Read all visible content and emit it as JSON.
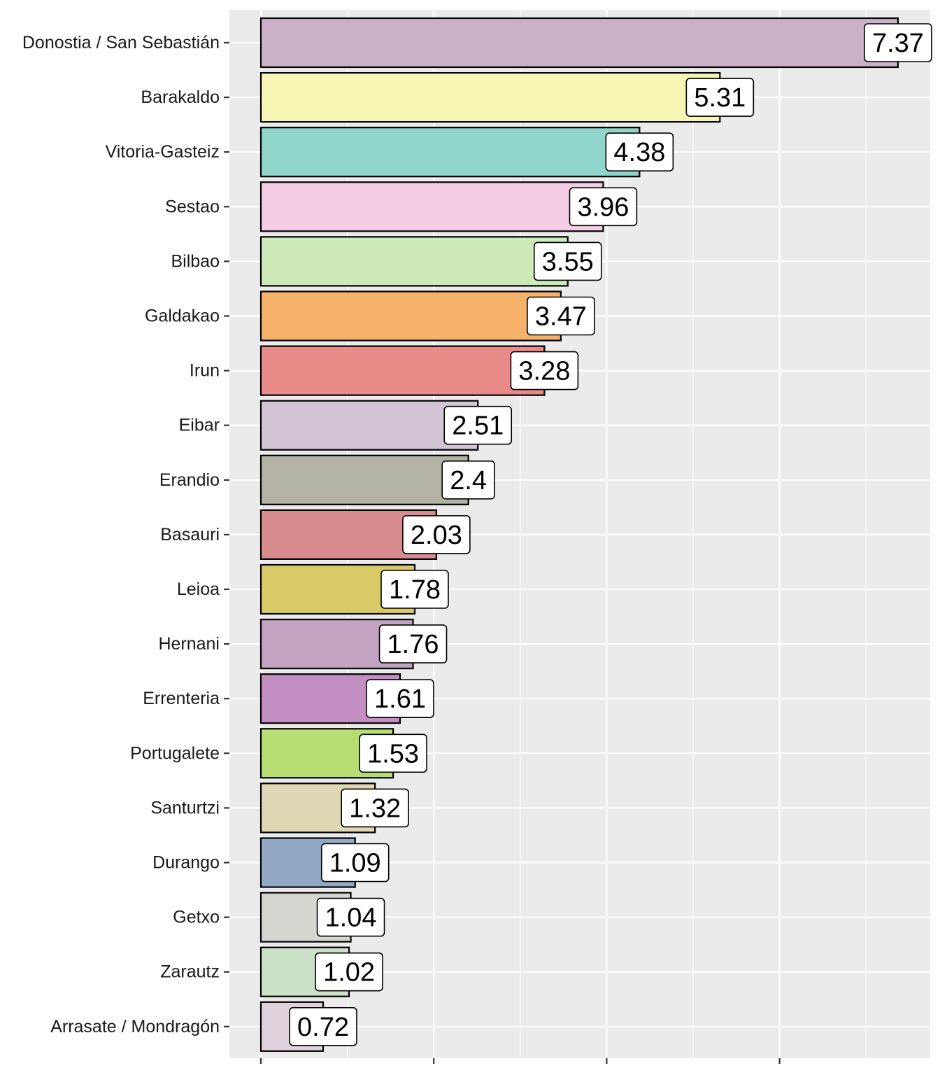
{
  "chart_data": {
    "type": "bar",
    "orientation": "horizontal",
    "title": "",
    "xlabel": "",
    "ylabel": "",
    "xlim": [
      0,
      7.75
    ],
    "x_major_breaks": [
      0,
      2,
      4,
      6
    ],
    "x_minor_breaks": [
      1,
      3,
      5,
      7
    ],
    "tick_labels_shown": false,
    "grid": true,
    "legend": "none",
    "categories": [
      "Donostia / San Sebastián",
      "Barakaldo",
      "Vitoria-Gasteiz",
      "Sestao",
      "Bilbao",
      "Galdakao",
      "Irun",
      "Eibar",
      "Erandio",
      "Basauri",
      "Leioa",
      "Hernani",
      "Errenteria",
      "Portugalete",
      "Santurtzi",
      "Durango",
      "Getxo",
      "Zarautz",
      "Arrasate / Mondragón"
    ],
    "values": [
      7.37,
      5.31,
      4.38,
      3.96,
      3.55,
      3.47,
      3.28,
      2.51,
      2.4,
      2.03,
      1.78,
      1.76,
      1.61,
      1.53,
      1.32,
      1.09,
      1.04,
      1.02,
      0.72
    ],
    "labels": [
      "7.37",
      "5.31",
      "4.38",
      "3.96",
      "3.55",
      "3.47",
      "3.28",
      "2.51",
      "2.4",
      "2.03",
      "1.78",
      "1.76",
      "1.61",
      "1.53",
      "1.32",
      "1.09",
      "1.04",
      "1.02",
      "0.72"
    ],
    "colors": [
      "#cbb0c8",
      "#f7f6b5",
      "#8fd5c9",
      "#f4cce4",
      "#cdeab8",
      "#f6b26a",
      "#e98b89",
      "#d3c4d6",
      "#b2b3a5",
      "#d98c8d",
      "#d9ca68",
      "#c2a3c1",
      "#c38fc2",
      "#b6de73",
      "#dfd6b4",
      "#92a9c5",
      "#d6d6d0",
      "#cbe2c8",
      "#e0d2dd"
    ]
  }
}
